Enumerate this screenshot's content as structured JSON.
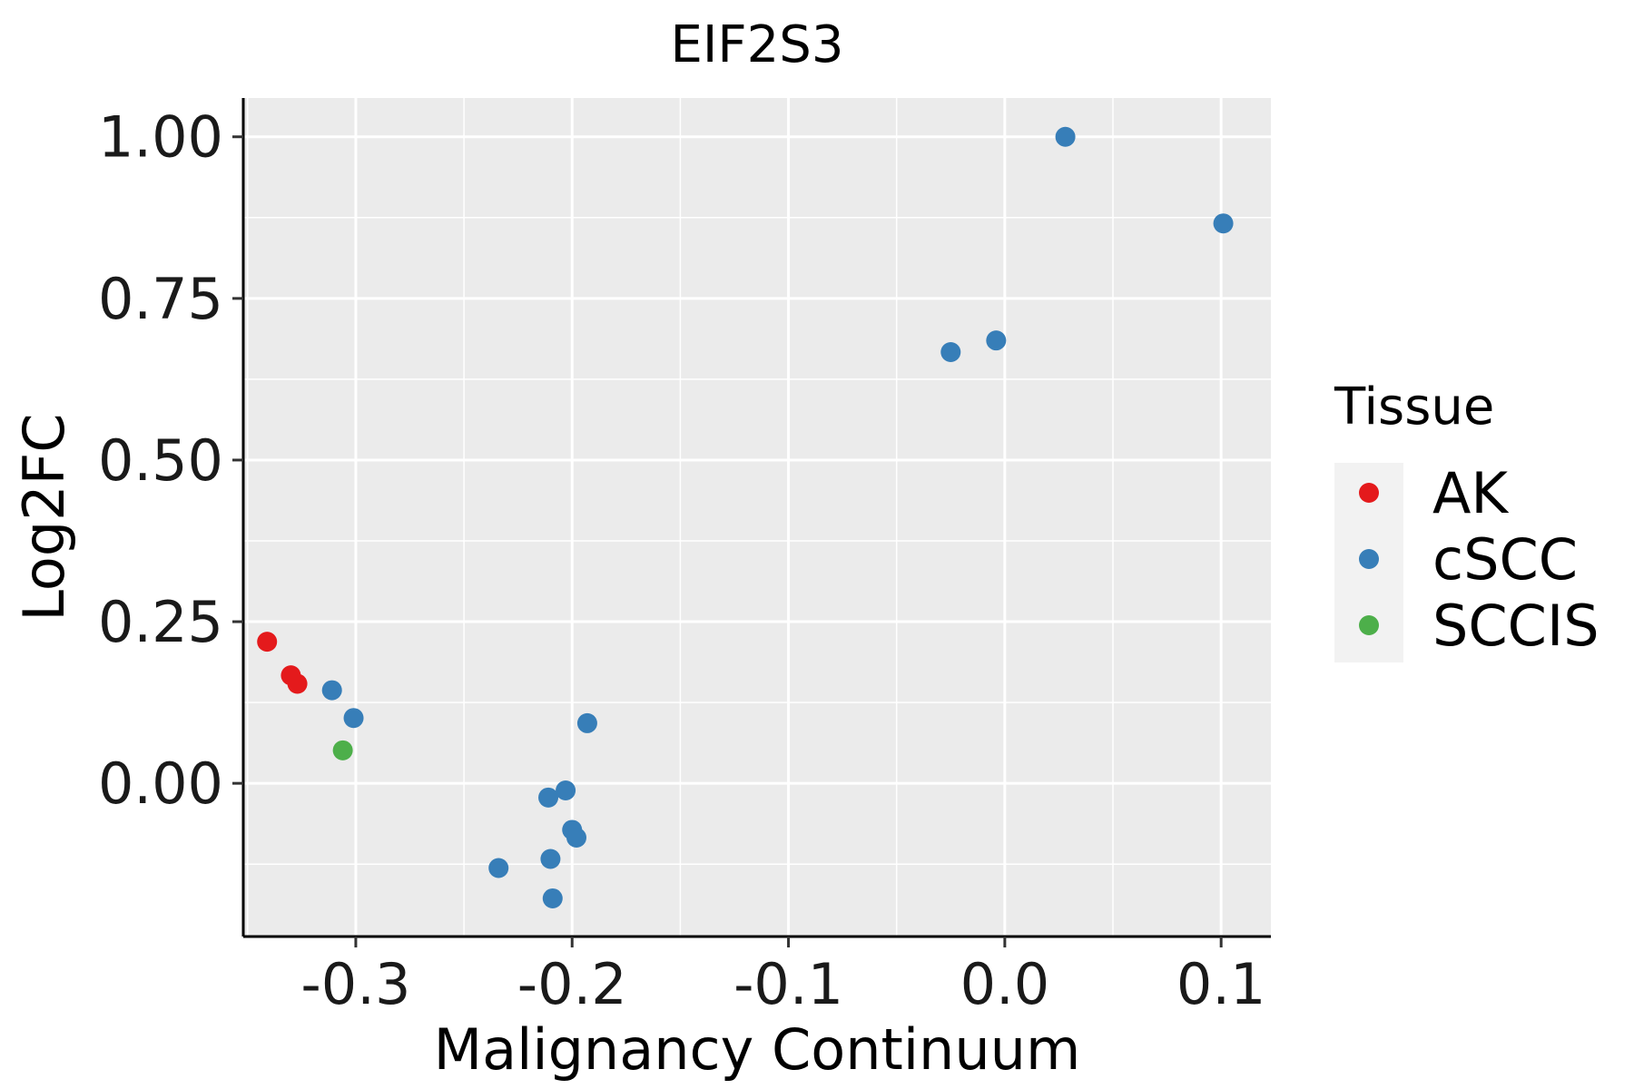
{
  "chart_data": {
    "type": "scatter",
    "title": "EIF2S3",
    "xlabel": "Malignancy Continuum",
    "ylabel": "Log2FC",
    "xlim": [
      -0.352,
      0.123
    ],
    "ylim": [
      -0.237,
      1.06
    ],
    "xticks": [
      -0.3,
      -0.2,
      -0.1,
      0.0,
      0.1
    ],
    "xtick_labels": [
      "-0.3",
      "-0.2",
      "-0.1",
      "0.0",
      "0.1"
    ],
    "yticks": [
      0.0,
      0.25,
      0.5,
      0.75,
      1.0
    ],
    "ytick_labels": [
      "0.00",
      "0.25",
      "0.50",
      "0.75",
      "1.00"
    ],
    "grid": true,
    "legend": {
      "title": "Tissue",
      "position": "right",
      "entries": [
        {
          "label": "AK",
          "color": "#e41a1c"
        },
        {
          "label": "cSCC",
          "color": "#377eb8"
        },
        {
          "label": "SCCIS",
          "color": "#4daf4a"
        }
      ]
    },
    "series": [
      {
        "name": "AK",
        "color": "#e41a1c",
        "points": [
          [
            -0.341,
            0.219
          ],
          [
            -0.33,
            0.167
          ],
          [
            -0.327,
            0.154
          ]
        ]
      },
      {
        "name": "cSCC",
        "color": "#377eb8",
        "points": [
          [
            0.028,
            1.0
          ],
          [
            0.101,
            0.866
          ],
          [
            -0.025,
            0.667
          ],
          [
            -0.004,
            0.685
          ],
          [
            -0.311,
            0.144
          ],
          [
            -0.301,
            0.101
          ],
          [
            -0.193,
            0.093
          ],
          [
            -0.211,
            -0.022
          ],
          [
            -0.203,
            -0.011
          ],
          [
            -0.2,
            -0.072
          ],
          [
            -0.198,
            -0.084
          ],
          [
            -0.234,
            -0.131
          ],
          [
            -0.21,
            -0.117
          ],
          [
            -0.209,
            -0.178
          ]
        ]
      },
      {
        "name": "SCCIS",
        "color": "#4daf4a",
        "points": [
          [
            -0.306,
            0.051
          ]
        ]
      }
    ]
  }
}
